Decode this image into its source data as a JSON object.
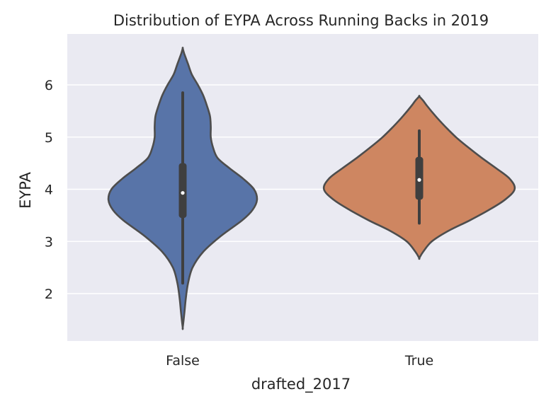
{
  "chart_data": {
    "type": "violin",
    "title": "Distribution of EYPA Across Running Backs in 2019",
    "xlabel": "drafted_2017",
    "ylabel": "EYPA",
    "categories": [
      "False",
      "True"
    ],
    "ylim": [
      1.1,
      6.9
    ],
    "yticks": [
      2,
      3,
      4,
      5,
      6
    ],
    "grid": true,
    "colors": {
      "background": "#EAEAF2",
      "grid": "#FFFFFF",
      "outline": "#4D4D4D",
      "inner_box": "#3F3F3F",
      "median_dot": "#FFFFFF",
      "series": [
        "#5874A8",
        "#CE8661"
      ]
    },
    "violins": [
      {
        "category": "False",
        "min": 1.35,
        "max": 6.7,
        "whisker_low": 2.2,
        "q1": 3.45,
        "median": 3.93,
        "q3": 4.5,
        "whisker_high": 5.85,
        "density_profile": [
          [
            1.35,
            0.0
          ],
          [
            1.6,
            0.02
          ],
          [
            1.9,
            0.04
          ],
          [
            2.2,
            0.07
          ],
          [
            2.5,
            0.13
          ],
          [
            2.8,
            0.27
          ],
          [
            3.1,
            0.5
          ],
          [
            3.4,
            0.78
          ],
          [
            3.6,
            0.92
          ],
          [
            3.8,
            0.98
          ],
          [
            4.0,
            0.94
          ],
          [
            4.2,
            0.8
          ],
          [
            4.4,
            0.62
          ],
          [
            4.6,
            0.46
          ],
          [
            4.8,
            0.4
          ],
          [
            5.0,
            0.37
          ],
          [
            5.2,
            0.37
          ],
          [
            5.4,
            0.36
          ],
          [
            5.6,
            0.32
          ],
          [
            5.8,
            0.27
          ],
          [
            6.0,
            0.2
          ],
          [
            6.2,
            0.12
          ],
          [
            6.4,
            0.07
          ],
          [
            6.6,
            0.02
          ],
          [
            6.7,
            0.0
          ]
        ]
      },
      {
        "category": "True",
        "min": 2.68,
        "max": 5.78,
        "whisker_low": 3.35,
        "q1": 3.8,
        "median": 4.18,
        "q3": 4.62,
        "whisker_high": 5.12,
        "density_profile": [
          [
            2.68,
            0.0
          ],
          [
            2.8,
            0.04
          ],
          [
            3.0,
            0.13
          ],
          [
            3.2,
            0.3
          ],
          [
            3.4,
            0.52
          ],
          [
            3.6,
            0.72
          ],
          [
            3.8,
            0.89
          ],
          [
            4.0,
            0.99
          ],
          [
            4.2,
            0.94
          ],
          [
            4.4,
            0.8
          ],
          [
            4.6,
            0.65
          ],
          [
            4.8,
            0.51
          ],
          [
            5.0,
            0.38
          ],
          [
            5.2,
            0.27
          ],
          [
            5.4,
            0.17
          ],
          [
            5.6,
            0.08
          ],
          [
            5.7,
            0.04
          ],
          [
            5.78,
            0.0
          ]
        ]
      }
    ]
  }
}
